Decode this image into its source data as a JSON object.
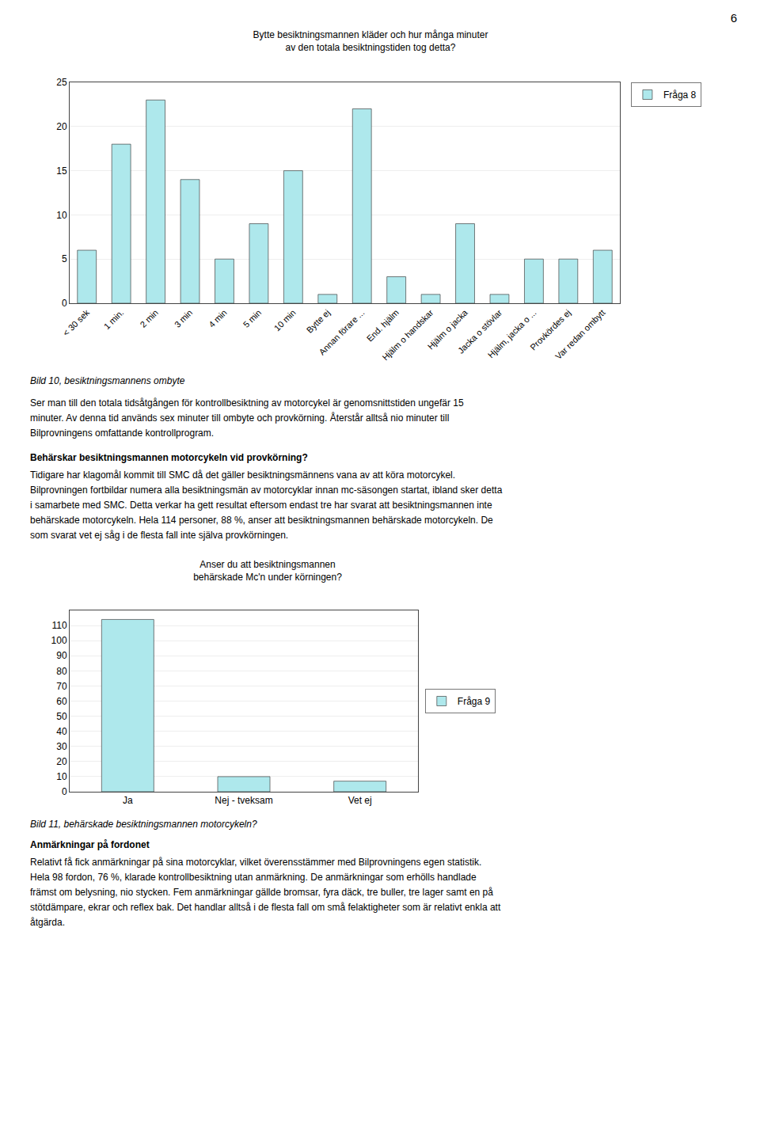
{
  "page_number": "6",
  "chart_data": [
    {
      "type": "bar",
      "title": "Bytte besiktningsmannen kläder och hur många minuter\nav den totala besiktningstiden tog detta?",
      "categories": [
        "< 30 sek",
        "1 min.",
        "2 min",
        "3 min",
        "4 min",
        "5 min",
        "10 min",
        "Bytte ej",
        "Annan förare ...",
        "End. hjälm",
        "Hjälm o handskar",
        "Hjälm o jacka",
        "Jacka o stövlar",
        "Hjälm, jacka o ...",
        "Provkördes ej",
        "Var redan ombytt"
      ],
      "series": [
        {
          "name": "Fråga 8",
          "color": "#aee8ec",
          "values": [
            6,
            18,
            23,
            14,
            5,
            9,
            15,
            1,
            22,
            3,
            1,
            9,
            1,
            5,
            5,
            6
          ]
        }
      ],
      "ylim": [
        0,
        25
      ],
      "yticks": [
        0,
        5,
        10,
        15,
        20,
        25
      ],
      "grid": true,
      "legend": "upper right",
      "caption": "Bild 10, besiktningsmannens ombyte"
    },
    {
      "type": "bar",
      "title": "Anser du att besiktningsmannen\nbehärskade Mc'n under körningen?",
      "categories": [
        "Ja",
        "Nej - tveksam",
        "Vet ej"
      ],
      "series": [
        {
          "name": "Fråga 9",
          "color": "#aee8ec",
          "values": [
            114,
            10,
            7
          ]
        }
      ],
      "ylim": [
        0,
        120
      ],
      "yticks": [
        0,
        10,
        20,
        30,
        40,
        50,
        60,
        70,
        80,
        90,
        100,
        110
      ],
      "grid": true,
      "legend": "right",
      "caption": "Bild 11, behärskade besiktningsmannen motorcykeln?"
    }
  ],
  "paragraphs": [
    [
      {
        "lines": [
          "Ser man till den totala tidsåtgången för kontrollbesiktning av motorcykel är genomsnittstiden ungefär 15",
          "minuter. Av denna tid används sex minuter till ombyte och provkörning. Återstår alltså nio minuter till",
          "Bilprovningens omfattande kontrollprogram."
        ]
      },
      {
        "heading": "Behärskar besiktningsmannen motorcykeln vid provkörning?",
        "lines": [
          "Tidigare har klagomål kommit till SMC då det gäller besiktningsmännens vana av att köra motorcykel.",
          "Bilprovningen fortbildar numera alla besiktningsmän av motorcyklar innan mc-säsongen startat, ibland sker detta",
          "i samarbete med SMC. Detta verkar ha gett resultat eftersom endast tre har svarat att besiktningsmannen inte",
          "behärskade motorcykeln. Hela 114 personer, 88 %, anser att besiktningsmannen behärskade motorcykeln. De",
          "som svarat vet ej såg i de flesta fall inte själva provkörningen."
        ]
      }
    ],
    [
      {
        "heading": "Anmärkningar på fordonet",
        "lines": [
          "Relativt få fick anmärkningar på sina motorcyklar, vilket överensstämmer med Bilprovningens egen statistik.",
          "Hela 98 fordon, 76 %, klarade kontrollbesiktning utan anmärkning. De anmärkningar som erhölls handlade",
          "främst om belysning, nio stycken. Fem anmärkningar gällde bromsar, fyra däck, tre buller, tre lager samt en på",
          "stötdämpare, ekrar och reflex bak. Det handlar alltså i de flesta fall om små felaktigheter som är relativt enkla att",
          "åtgärda."
        ]
      }
    ]
  ]
}
